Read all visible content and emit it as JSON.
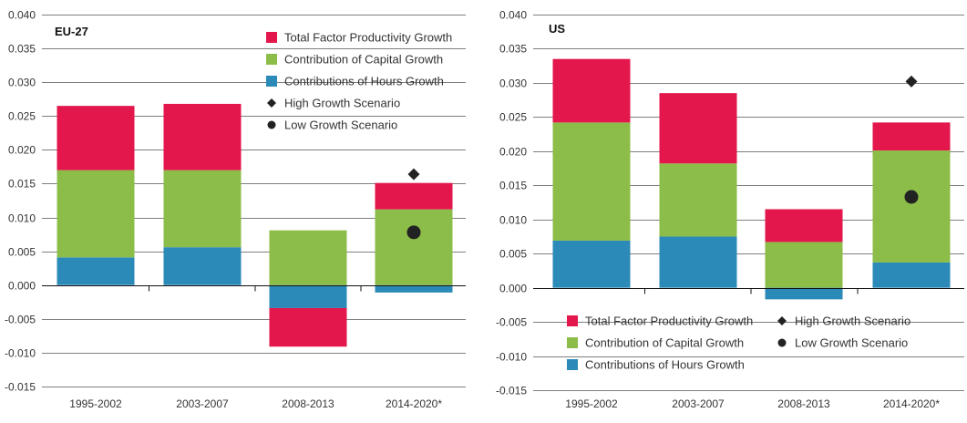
{
  "colors": {
    "tfp": "#e3174c",
    "capital": "#8cbd49",
    "hours": "#2b8ab8",
    "marker": "#222222",
    "grid": "#555555"
  },
  "chart_data": [
    {
      "type": "bar",
      "stacked": true,
      "title": "EU-27",
      "categories": [
        "1995-2002",
        "2003-2007",
        "2008-2013",
        "2014-2020*"
      ],
      "ylim": [
        -0.015,
        0.04
      ],
      "yticks": [
        "0.040",
        "0.035",
        "0.030",
        "0.025",
        "0.020",
        "0.015",
        "0.010",
        "0.005",
        "0.000",
        "-0.005",
        "-0.010",
        "-0.015"
      ],
      "grid": true,
      "legend_position": "top-right",
      "series": [
        {
          "name": "Contributions of Hours Growth",
          "color_key": "hours",
          "values": [
            0.0041,
            0.0056,
            -0.0034,
            -0.0011
          ]
        },
        {
          "name": "Contribution of Capital Growth",
          "color_key": "capital",
          "values": [
            0.0129,
            0.0114,
            0.0081,
            0.0112
          ]
        },
        {
          "name": "Total Factor Productivity Growth",
          "color_key": "tfp",
          "values": [
            0.0095,
            0.0098,
            -0.0057,
            0.0039
          ]
        }
      ],
      "markers": [
        {
          "name": "High Growth Scenario",
          "shape": "diamond",
          "category": "2014-2020*",
          "value": 0.0164
        },
        {
          "name": "Low Growth Scenario",
          "shape": "circle",
          "category": "2014-2020*",
          "value": 0.0078
        }
      ],
      "legend": [
        {
          "label": "Total Factor Productivity Growth",
          "kind": "square",
          "color_key": "tfp"
        },
        {
          "label": "Contribution of Capital Growth",
          "kind": "square",
          "color_key": "capital"
        },
        {
          "label": "Contributions of Hours Growth",
          "kind": "square",
          "color_key": "hours"
        },
        {
          "label": "High Growth Scenario",
          "kind": "diamond",
          "color_key": "marker"
        },
        {
          "label": "Low Growth Scenario",
          "kind": "circle",
          "color_key": "marker"
        }
      ]
    },
    {
      "type": "bar",
      "stacked": true,
      "title": "US",
      "categories": [
        "1995-2002",
        "2003-2007",
        "2008-2013",
        "2014-2020*"
      ],
      "ylim": [
        -0.015,
        0.04
      ],
      "yticks": [
        "0.040",
        "0.035",
        "0.030",
        "0.025",
        "0.020",
        "0.015",
        "0.010",
        "0.005",
        "0.000",
        "-0.005",
        "-0.010",
        "-0.015"
      ],
      "grid": true,
      "legend_position": "bottom",
      "series": [
        {
          "name": "Contributions of Hours Growth",
          "color_key": "hours",
          "values": [
            0.0069,
            0.0075,
            -0.0017,
            0.0037
          ]
        },
        {
          "name": "Contribution of Capital Growth",
          "color_key": "capital",
          "values": [
            0.0173,
            0.0107,
            0.0067,
            0.0164
          ]
        },
        {
          "name": "Total Factor Productivity Growth",
          "color_key": "tfp",
          "values": [
            0.0093,
            0.0103,
            0.0048,
            0.0041
          ]
        }
      ],
      "markers": [
        {
          "name": "High Growth Scenario",
          "shape": "diamond",
          "category": "2014-2020*",
          "value": 0.0302
        },
        {
          "name": "Low Growth Scenario",
          "shape": "circle",
          "category": "2014-2020*",
          "value": 0.0133
        }
      ],
      "legend": [
        {
          "label": "Total Factor Productivity Growth",
          "kind": "square",
          "color_key": "tfp"
        },
        {
          "label": "High Growth Scenario",
          "kind": "diamond",
          "color_key": "marker"
        },
        {
          "label": "Contribution of Capital Growth",
          "kind": "square",
          "color_key": "capital"
        },
        {
          "label": "Low Growth Scenario",
          "kind": "circle",
          "color_key": "marker"
        },
        {
          "label": "Contributions of Hours Growth",
          "kind": "square",
          "color_key": "hours"
        }
      ]
    }
  ]
}
